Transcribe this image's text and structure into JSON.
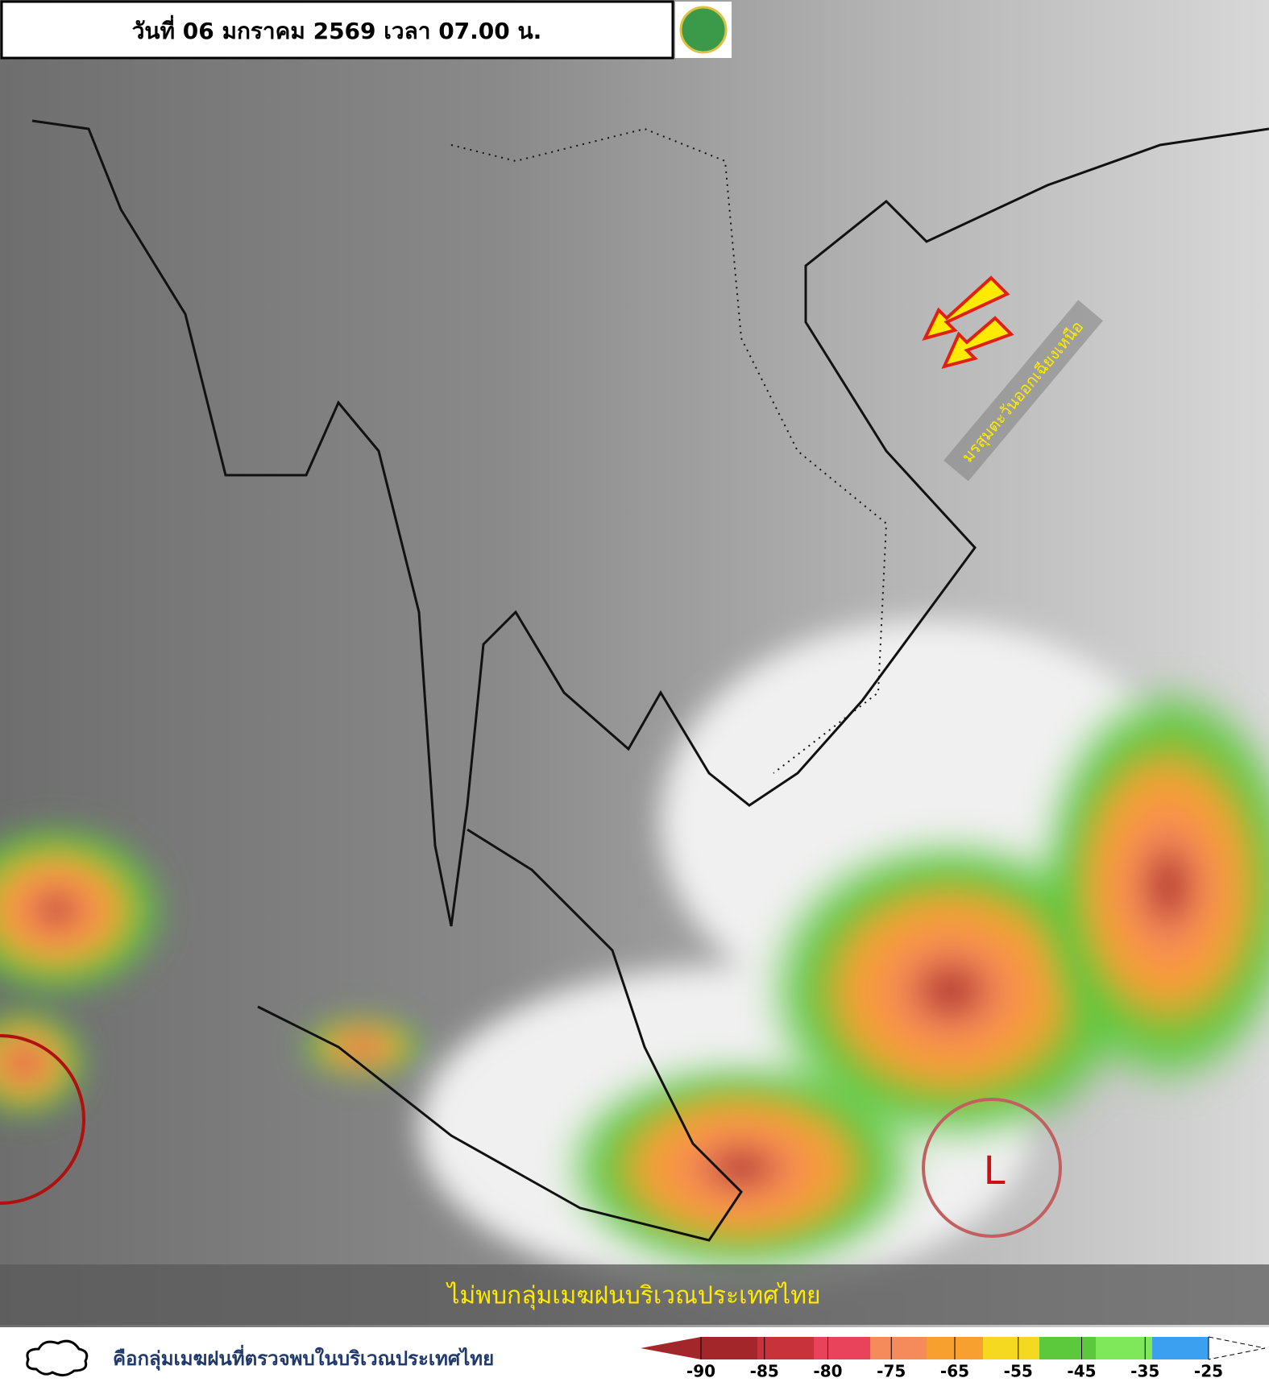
{
  "header": {
    "title": "วันที่ 06 มกราคม 2569 เวลา 07.00 น."
  },
  "annotations": {
    "monsoon": "มรสุมตะวันออกเฉียงเหนือ",
    "low_marker": "L",
    "banner": "ไม่พบกลุ่มเมฆฝนบริเวณประเทศไทย"
  },
  "legend": {
    "cloud_text": "คือกลุ่มเมฆฝนที่ตรวจพบในบริเวณประเทศไทย"
  },
  "colorbar": {
    "ticks": [
      -90,
      -85,
      -80,
      -75,
      -65,
      -55,
      -45,
      -35,
      -25
    ],
    "colors": [
      "#a3262a",
      "#c8323a",
      "#e8435a",
      "#f58a5a",
      "#f7a030",
      "#f5d820",
      "#5cc83c",
      "#7ee85a",
      "#3ca0f0"
    ]
  }
}
